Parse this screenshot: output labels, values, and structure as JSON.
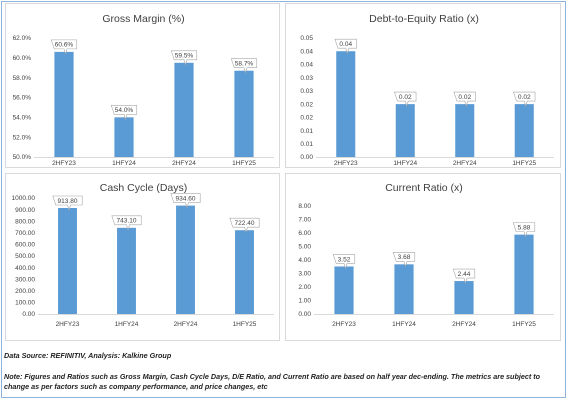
{
  "chart_data": [
    {
      "type": "bar",
      "title": "Gross Margin (%)",
      "categories": [
        "2HFY23",
        "1HFY24",
        "2HFY24",
        "1HFY25"
      ],
      "values": [
        60.6,
        54.0,
        59.5,
        58.7
      ],
      "value_labels": [
        "60.6%",
        "54.0%",
        "59.5%",
        "58.7%"
      ],
      "yticks": [
        "50.0%",
        "52.0%",
        "54.0%",
        "56.0%",
        "58.0%",
        "60.0%",
        "62.0%"
      ],
      "ylim": [
        50,
        62
      ],
      "grid": false,
      "legend": "none",
      "color": "#5b9bd5"
    },
    {
      "type": "bar",
      "title": "Debt-to-Equity Ratio (x)",
      "categories": [
        "2HFY23",
        "1HFY24",
        "2HFY24",
        "1HFY25"
      ],
      "values": [
        0.04,
        0.02,
        0.02,
        0.02
      ],
      "value_labels": [
        "0.04",
        "0.02",
        "0.02",
        "0.02"
      ],
      "yticks": [
        "0.00",
        "0.01",
        "0.01",
        "0.02",
        "0.02",
        "0.03",
        "0.03",
        "0.04",
        "0.04",
        "0.05"
      ],
      "ylim": [
        0,
        0.045
      ],
      "grid": false,
      "legend": "none",
      "color": "#5b9bd5"
    },
    {
      "type": "bar",
      "title": "Cash Cycle (Days)",
      "categories": [
        "2HFY23",
        "1HFY24",
        "2HFY24",
        "1HFY25"
      ],
      "values": [
        913.8,
        743.1,
        934.6,
        722.4
      ],
      "value_labels": [
        "913.80",
        "743.10",
        "934.60",
        "722.40"
      ],
      "yticks": [
        "0.00",
        "100.00",
        "200.00",
        "300.00",
        "400.00",
        "500.00",
        "600.00",
        "700.00",
        "800.00",
        "900.00",
        "1000.00"
      ],
      "ylim": [
        0,
        1000
      ],
      "grid": false,
      "legend": "none",
      "color": "#5b9bd5"
    },
    {
      "type": "bar",
      "title": "Current Ratio (x)",
      "categories": [
        "2HFY23",
        "1HFY24",
        "2HFY24",
        "1HFY25"
      ],
      "values": [
        3.52,
        3.68,
        2.44,
        5.88
      ],
      "value_labels": [
        "3.52",
        "3.68",
        "2.44",
        "5.88"
      ],
      "yticks": [
        "0.00",
        "1.00",
        "2.00",
        "3.00",
        "4.00",
        "5.00",
        "6.00",
        "7.00",
        "8.00"
      ],
      "ylim": [
        0,
        8
      ],
      "grid": false,
      "legend": "none",
      "color": "#5b9bd5"
    }
  ],
  "source_note": "Data Source: REFINITIV, Analysis: Kalkine Group",
  "disclaimer_note": "Note: Figures and Ratios such as Gross Margin, Cash Cycle Days, D/E Ratio, and Current Ratio are based on half  year dec-ending. The metrics are subject to change as per factors such as company performance, and price changes, etc"
}
